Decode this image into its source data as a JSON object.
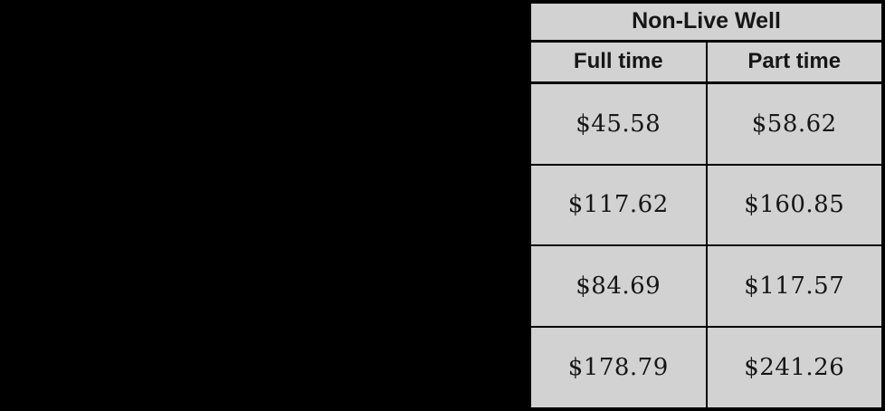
{
  "canvas": {
    "background_color": "#000000"
  },
  "table": {
    "title": "Non-Live Well",
    "column_headers": [
      "Full time",
      "Part time"
    ],
    "rows": [
      [
        "$45.58",
        "$58.62"
      ],
      [
        "$117.62",
        "$160.85"
      ],
      [
        "$84.69",
        "$117.57"
      ],
      [
        "$178.79",
        "$241.26"
      ]
    ],
    "colors": {
      "cell_background": "#d2d2d2",
      "border": "#000000",
      "text": "#161616"
    }
  }
}
